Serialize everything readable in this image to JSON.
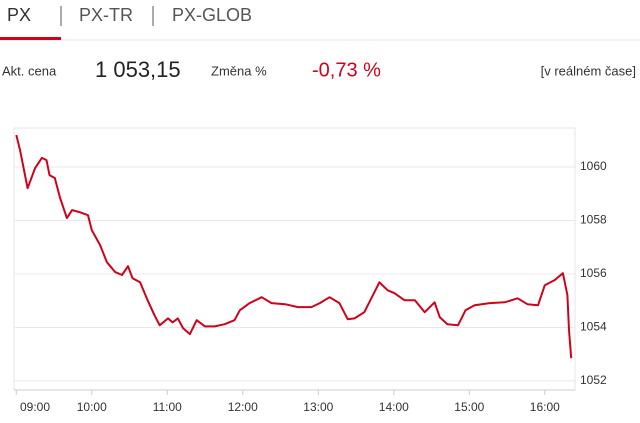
{
  "header": {
    "tabs": [
      "PX",
      "PX-TR",
      "PX-GLOB"
    ],
    "price_label": "Akt. cena",
    "price": "1 053,15",
    "change_label": "Změna %",
    "change": "-0,73 %",
    "realtime": "[v reálném čase]"
  },
  "chart_data": {
    "type": "line",
    "color": "#d0021b",
    "grid": true,
    "x": [
      9.0,
      9.05,
      9.15,
      9.25,
      9.34,
      9.4,
      9.44,
      9.51,
      9.58,
      9.67,
      9.74,
      9.84,
      9.95,
      10.0,
      10.11,
      10.2,
      10.31,
      10.4,
      10.48,
      10.54,
      10.64,
      10.74,
      10.83,
      10.9,
      11.01,
      11.07,
      11.14,
      11.21,
      11.3,
      11.39,
      11.5,
      11.63,
      11.76,
      11.89,
      11.96,
      12.09,
      12.25,
      12.38,
      12.56,
      12.73,
      12.91,
      13.02,
      13.15,
      13.28,
      13.39,
      13.48,
      13.61,
      13.71,
      13.81,
      13.92,
      14.01,
      14.14,
      14.28,
      14.41,
      14.54,
      14.61,
      14.71,
      14.85,
      14.95,
      15.07,
      15.27,
      15.47,
      15.64,
      15.77,
      15.91,
      16.0,
      16.13,
      16.24,
      16.3,
      16.32,
      16.35
    ],
    "values": [
      1061.2,
      1060.64,
      1059.21,
      1059.96,
      1060.34,
      1060.26,
      1059.7,
      1059.59,
      1058.84,
      1058.09,
      1058.39,
      1058.31,
      1058.2,
      1057.64,
      1057.08,
      1056.44,
      1056.07,
      1055.96,
      1056.29,
      1055.84,
      1055.69,
      1055.02,
      1054.46,
      1054.08,
      1054.34,
      1054.19,
      1054.34,
      1053.97,
      1053.75,
      1054.27,
      1054.04,
      1054.04,
      1054.12,
      1054.27,
      1054.64,
      1054.91,
      1055.13,
      1054.91,
      1054.87,
      1054.76,
      1054.76,
      1054.91,
      1055.13,
      1054.91,
      1054.31,
      1054.34,
      1054.57,
      1055.13,
      1055.69,
      1055.39,
      1055.28,
      1055.02,
      1055.02,
      1054.57,
      1054.94,
      1054.38,
      1054.12,
      1054.08,
      1054.64,
      1054.83,
      1054.91,
      1054.94,
      1055.09,
      1054.87,
      1054.83,
      1055.58,
      1055.77,
      1056.03,
      1055.21,
      1053.9,
      1052.85
    ],
    "xlim": [
      8.97,
      16.4
    ],
    "ylim": [
      1051.66,
      1061.46
    ],
    "yticks": [
      1052,
      1054,
      1056,
      1058,
      1060
    ],
    "xticks": [
      {
        "value": 9,
        "label": "09:00"
      },
      {
        "value": 10,
        "label": "10:00"
      },
      {
        "value": 11,
        "label": "11:00"
      },
      {
        "value": 12,
        "label": "12:00"
      },
      {
        "value": 13,
        "label": "13:00"
      },
      {
        "value": 14,
        "label": "14:00"
      },
      {
        "value": 15,
        "label": "15:00"
      },
      {
        "value": 16,
        "label": "16:00"
      }
    ]
  }
}
